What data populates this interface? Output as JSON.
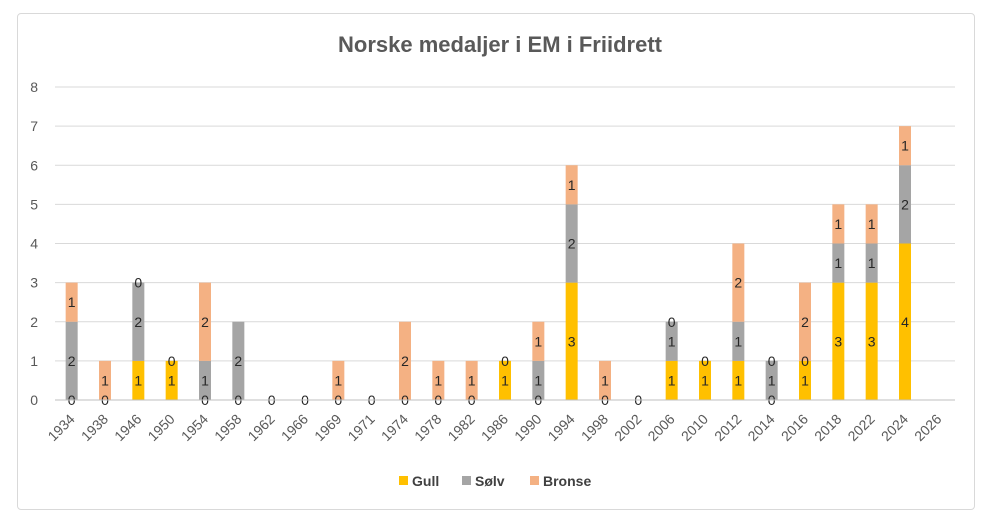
{
  "chart_data": {
    "type": "bar",
    "stacked": true,
    "title": "Norske medaljer i EM i Friidrett",
    "xlabel": "",
    "ylabel": "",
    "ylim": [
      0,
      8
    ],
    "yticks": [
      "0",
      "1",
      "2",
      "3",
      "4",
      "5",
      "6",
      "7",
      "8"
    ],
    "grid": true,
    "legend_position": "bottom",
    "categories": [
      "1934",
      "1938",
      "1946",
      "1950",
      "1954",
      "1958",
      "1962",
      "1966",
      "1969",
      "1971",
      "1974",
      "1978",
      "1982",
      "1986",
      "1990",
      "1994",
      "1998",
      "2002",
      "2006",
      "2010",
      "2012",
      "2014",
      "2016",
      "2018",
      "2022",
      "2024",
      "2026"
    ],
    "series": [
      {
        "name": "Gull",
        "color": "#ffc000",
        "values": [
          0,
          0,
          1,
          1,
          0,
          0,
          0,
          0,
          0,
          0,
          0,
          0,
          0,
          1,
          0,
          3,
          0,
          0,
          1,
          1,
          1,
          0,
          1,
          3,
          3,
          4,
          null
        ]
      },
      {
        "name": "Sølv",
        "color": "#a5a5a5",
        "values": [
          2,
          null,
          2,
          0,
          1,
          2,
          null,
          null,
          null,
          null,
          null,
          null,
          null,
          0,
          1,
          2,
          null,
          null,
          1,
          0,
          1,
          1,
          0,
          1,
          1,
          2,
          null
        ]
      },
      {
        "name": "Bronse",
        "color": "#f4b183",
        "values": [
          1,
          1,
          0,
          null,
          2,
          null,
          null,
          null,
          1,
          null,
          2,
          1,
          1,
          null,
          1,
          1,
          1,
          null,
          0,
          null,
          2,
          0,
          2,
          1,
          1,
          1,
          null
        ]
      }
    ]
  }
}
